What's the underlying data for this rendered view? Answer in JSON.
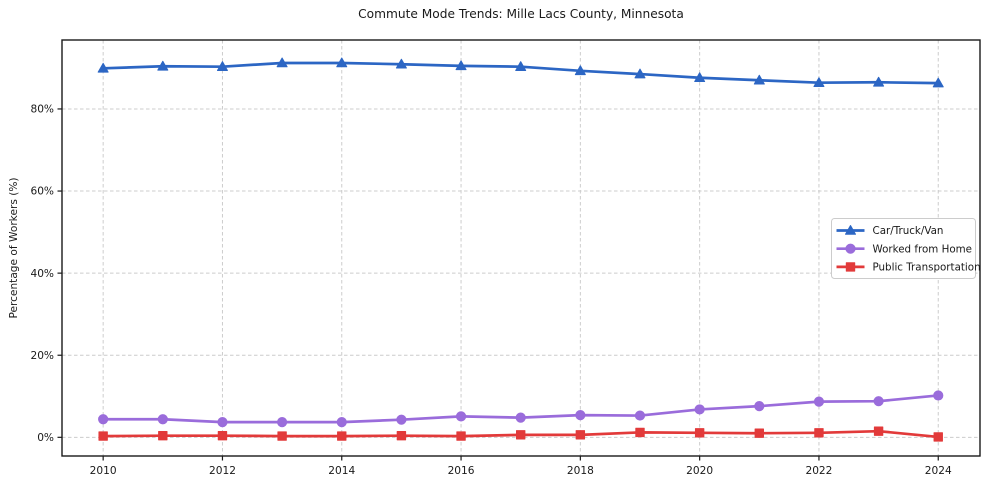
{
  "chart_data": {
    "type": "line",
    "title": "Commute Mode Trends: Mille Lacs County, Minnesota",
    "xlabel": "",
    "ylabel": "Percentage of Workers (%)",
    "x": [
      2010,
      2011,
      2012,
      2013,
      2014,
      2015,
      2016,
      2017,
      2018,
      2019,
      2020,
      2021,
      2022,
      2023,
      2024
    ],
    "x_ticks": [
      2010,
      2012,
      2014,
      2016,
      2018,
      2020,
      2022,
      2024
    ],
    "y_ticks": [
      0,
      20,
      40,
      60,
      80
    ],
    "y_tick_suffix": "%",
    "xlim": [
      2009.31,
      2024.7
    ],
    "ylim": [
      -4.55,
      96.8
    ],
    "grid": true,
    "grid_style": "dashed",
    "legend_position": "center-right",
    "series": [
      {
        "name": "Car/Truck/Van",
        "color": "#2c66c4",
        "marker": "triangle",
        "values": [
          89.9,
          90.4,
          90.3,
          91.2,
          91.2,
          90.9,
          90.5,
          90.3,
          89.3,
          88.5,
          87.6,
          87.0,
          86.4,
          86.5,
          86.3
        ]
      },
      {
        "name": "Worked from Home",
        "color": "#9a6cdb",
        "marker": "circle",
        "values": [
          4.4,
          4.4,
          3.7,
          3.7,
          3.7,
          4.3,
          5.1,
          4.8,
          5.4,
          5.3,
          6.8,
          7.6,
          8.7,
          8.8,
          10.2
        ]
      },
      {
        "name": "Public Transportation",
        "color": "#e23a3a",
        "marker": "square",
        "values": [
          0.3,
          0.4,
          0.4,
          0.3,
          0.3,
          0.4,
          0.3,
          0.6,
          0.6,
          1.2,
          1.1,
          1.0,
          1.1,
          1.5,
          0.1
        ]
      }
    ]
  }
}
